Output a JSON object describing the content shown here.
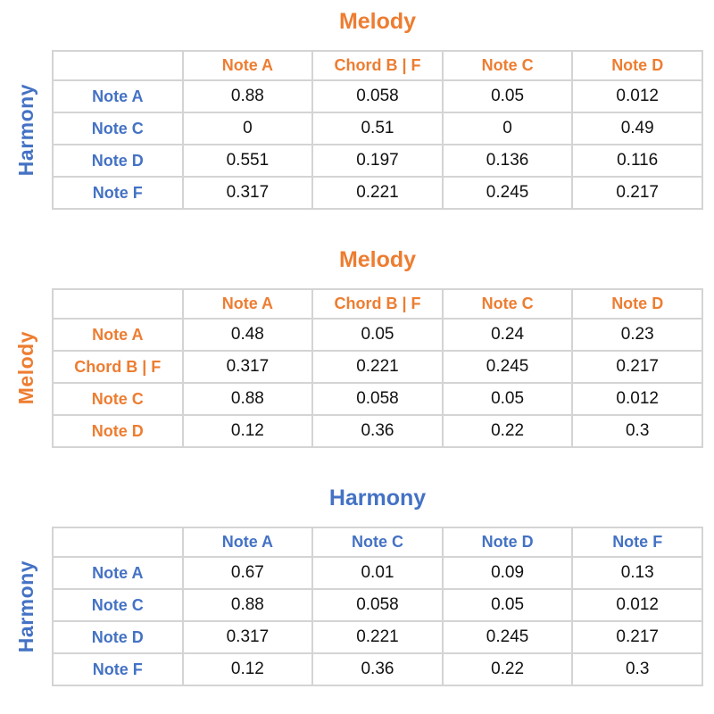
{
  "colors": {
    "melody_accent": "#ED7D31",
    "harmony_accent": "#4472C4",
    "grid_border": "#D4D4D4",
    "value_text": "#111111"
  },
  "tables": [
    {
      "title": "Melody",
      "side_label": "Harmony",
      "col_headers": [
        "Note A",
        "Chord B | F",
        "Note C",
        "Note D"
      ],
      "rows": [
        {
          "label": "Note A",
          "values": [
            "0.88",
            "0.058",
            "0.05",
            "0.012"
          ]
        },
        {
          "label": "Note C",
          "values": [
            "0",
            "0.51",
            "0",
            "0.49"
          ]
        },
        {
          "label": "Note D",
          "values": [
            "0.551",
            "0.197",
            "0.136",
            "0.116"
          ]
        },
        {
          "label": "Note F",
          "values": [
            "0.317",
            "0.221",
            "0.245",
            "0.217"
          ]
        }
      ]
    },
    {
      "title": "Melody",
      "side_label": "Melody",
      "col_headers": [
        "Note A",
        "Chord B | F",
        "Note C",
        "Note D"
      ],
      "rows": [
        {
          "label": "Note A",
          "values": [
            "0.48",
            "0.05",
            "0.24",
            "0.23"
          ]
        },
        {
          "label": "Chord B | F",
          "values": [
            "0.317",
            "0.221",
            "0.245",
            "0.217"
          ]
        },
        {
          "label": "Note C",
          "values": [
            "0.88",
            "0.058",
            "0.05",
            "0.012"
          ]
        },
        {
          "label": "Note D",
          "values": [
            "0.12",
            "0.36",
            "0.22",
            "0.3"
          ]
        }
      ]
    },
    {
      "title": "Harmony",
      "side_label": "Harmony",
      "col_headers": [
        "Note A",
        "Note C",
        "Note D",
        "Note F"
      ],
      "rows": [
        {
          "label": "Note A",
          "values": [
            "0.67",
            "0.01",
            "0.09",
            "0.13"
          ]
        },
        {
          "label": "Note C",
          "values": [
            "0.88",
            "0.058",
            "0.05",
            "0.012"
          ]
        },
        {
          "label": "Note D",
          "values": [
            "0.317",
            "0.221",
            "0.245",
            "0.217"
          ]
        },
        {
          "label": "Note F",
          "values": [
            "0.12",
            "0.36",
            "0.22",
            "0.3"
          ]
        }
      ]
    }
  ],
  "chart_data": [
    {
      "type": "table",
      "title": "Melody",
      "row_axis_label": "Harmony",
      "col_axis_label": "Melody",
      "columns": [
        "Note A",
        "Chord B | F",
        "Note C",
        "Note D"
      ],
      "rows": [
        "Note A",
        "Note C",
        "Note D",
        "Note F"
      ],
      "values": [
        [
          0.88,
          0.058,
          0.05,
          0.012
        ],
        [
          0,
          0.51,
          0,
          0.49
        ],
        [
          0.551,
          0.197,
          0.136,
          0.116
        ],
        [
          0.317,
          0.221,
          0.245,
          0.217
        ]
      ]
    },
    {
      "type": "table",
      "title": "Melody",
      "row_axis_label": "Melody",
      "col_axis_label": "Melody",
      "columns": [
        "Note A",
        "Chord B | F",
        "Note C",
        "Note D"
      ],
      "rows": [
        "Note A",
        "Chord B | F",
        "Note C",
        "Note D"
      ],
      "values": [
        [
          0.48,
          0.05,
          0.24,
          0.23
        ],
        [
          0.317,
          0.221,
          0.245,
          0.217
        ],
        [
          0.88,
          0.058,
          0.05,
          0.012
        ],
        [
          0.12,
          0.36,
          0.22,
          0.3
        ]
      ]
    },
    {
      "type": "table",
      "title": "Harmony",
      "row_axis_label": "Harmony",
      "col_axis_label": "Harmony",
      "columns": [
        "Note A",
        "Note C",
        "Note D",
        "Note F"
      ],
      "rows": [
        "Note A",
        "Note C",
        "Note D",
        "Note F"
      ],
      "values": [
        [
          0.67,
          0.01,
          0.09,
          0.13
        ],
        [
          0.88,
          0.058,
          0.05,
          0.012
        ],
        [
          0.317,
          0.221,
          0.245,
          0.217
        ],
        [
          0.12,
          0.36,
          0.22,
          0.3
        ]
      ]
    }
  ]
}
